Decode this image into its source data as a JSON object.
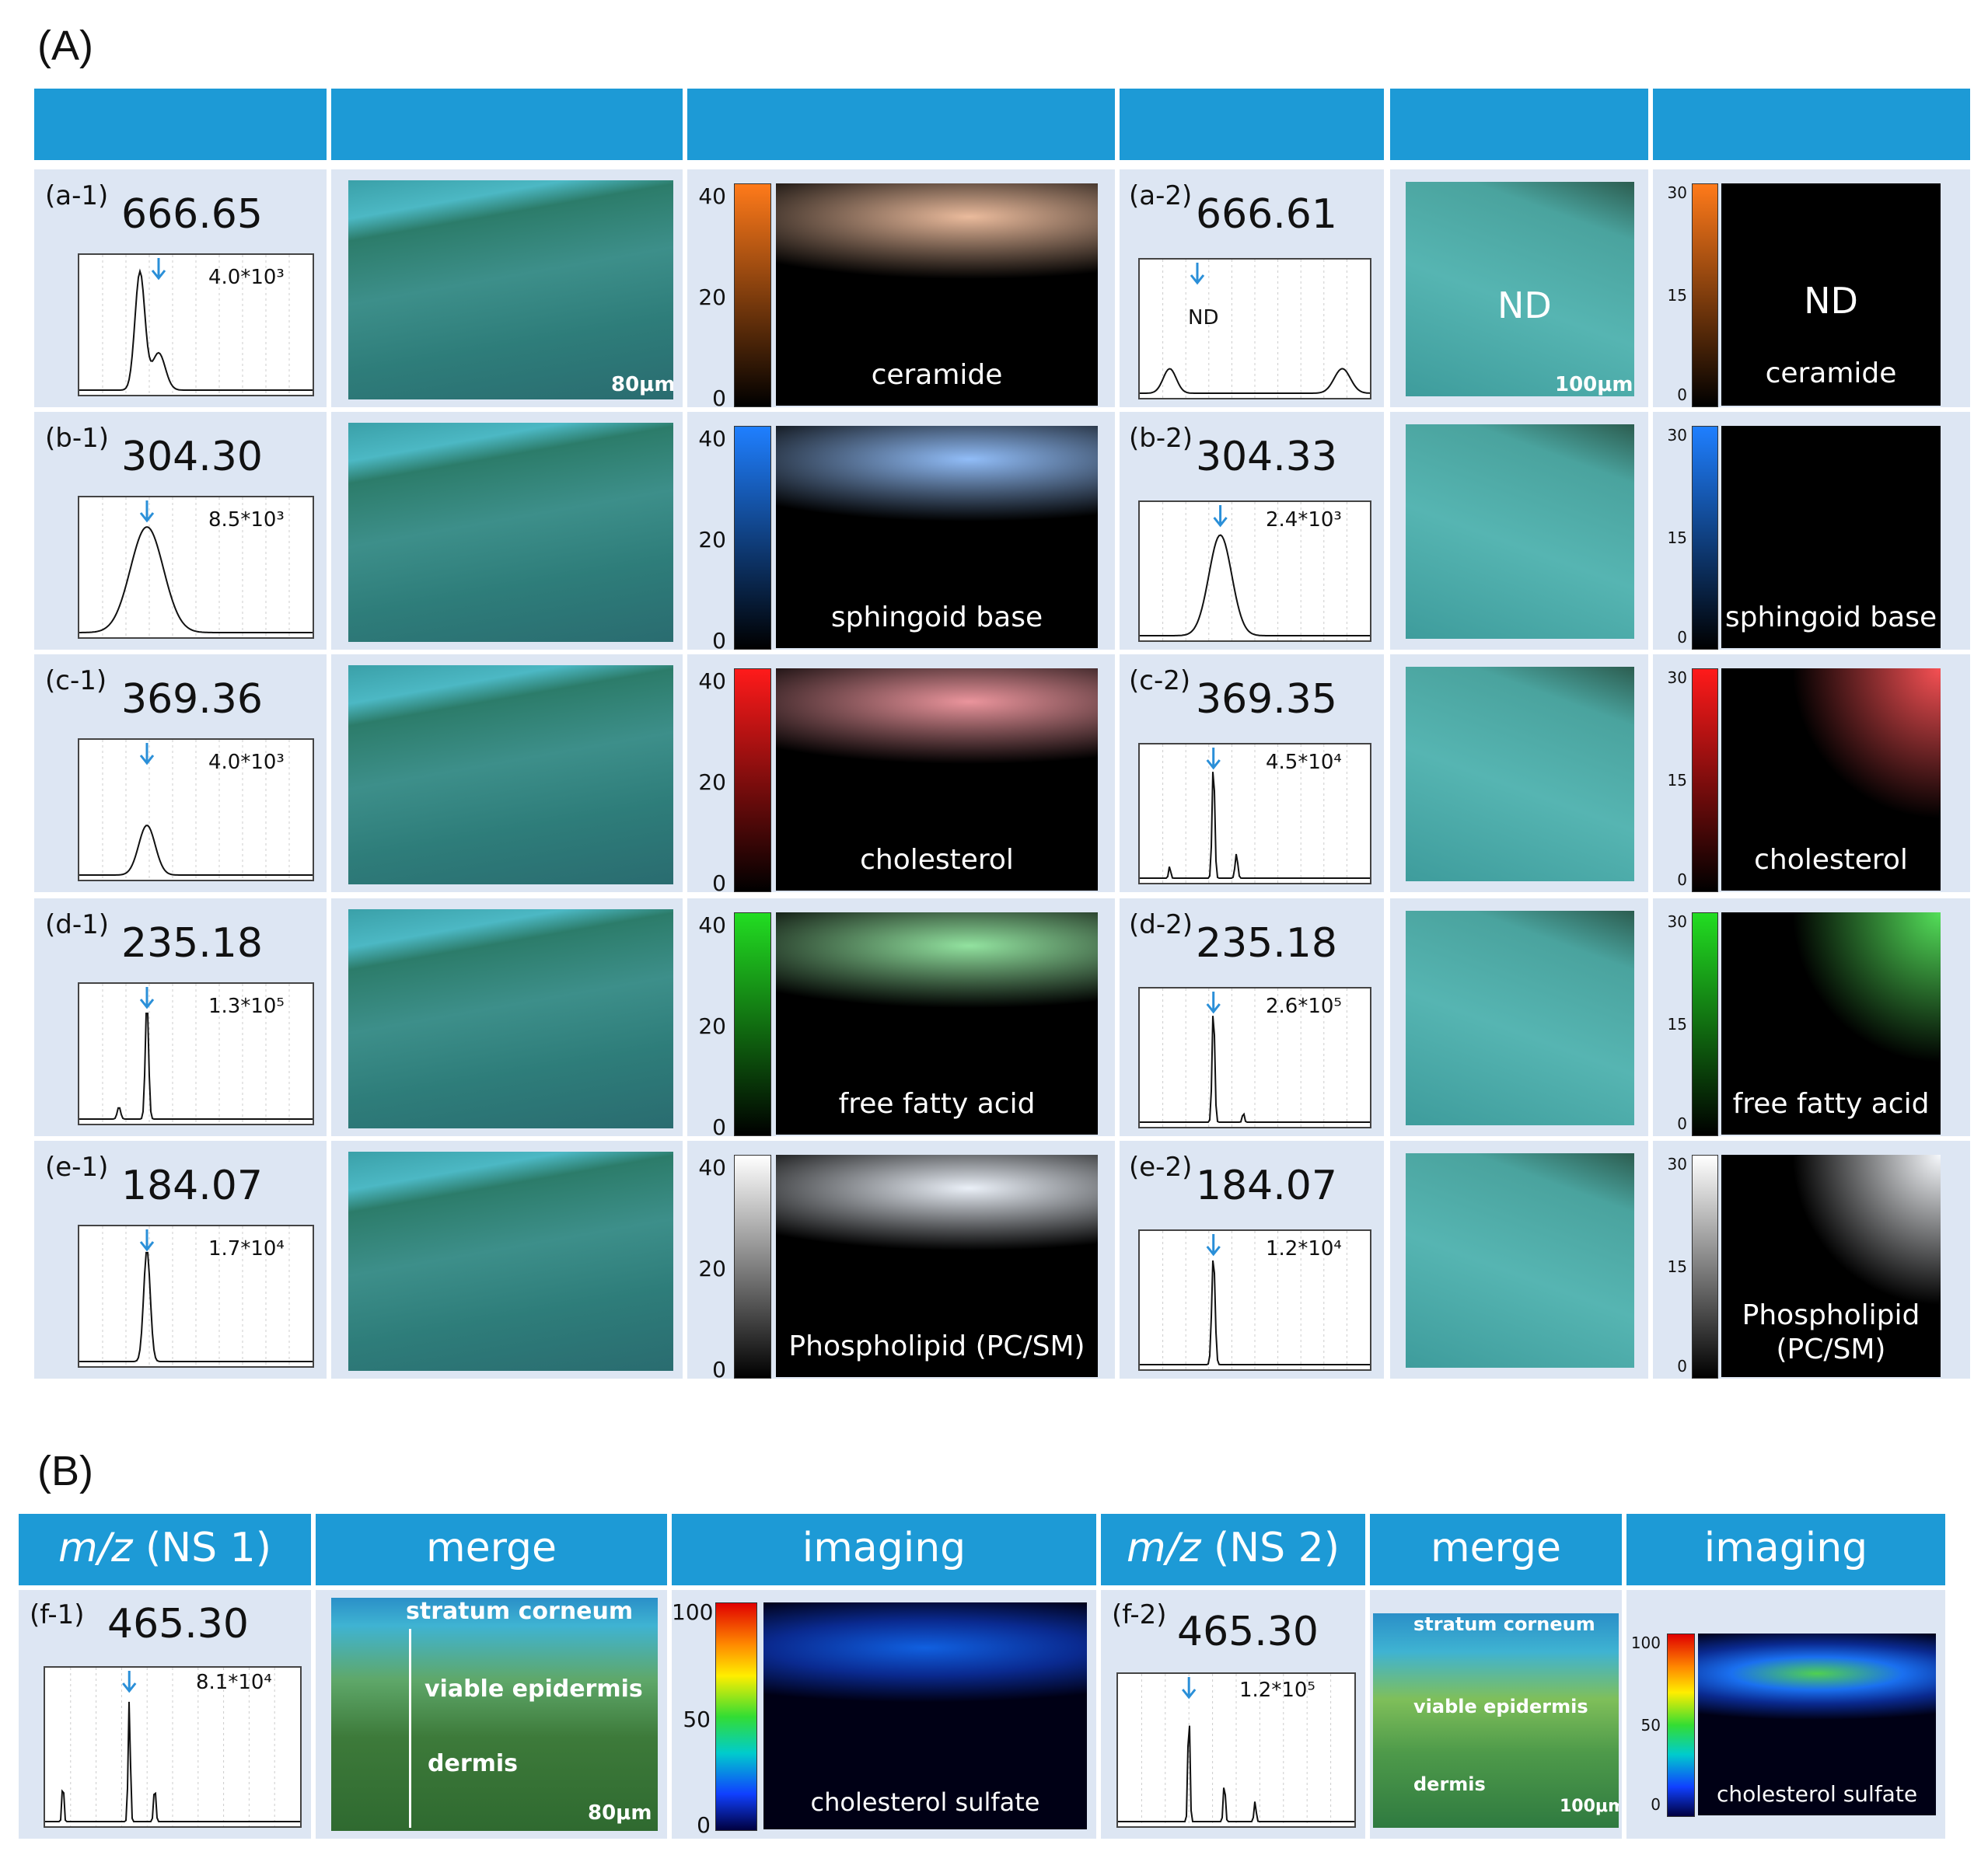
{
  "panel_A_label": "(A)",
  "panel_B_label": "(B)",
  "rows": [
    {
      "left_label": "(a-1)",
      "left_mz": "666.65",
      "left_intensity": "4.0*10³",
      "left_compound": "ceramide",
      "left_scale": "80μm",
      "right_label": "(a-2)",
      "right_mz": "666.61",
      "right_peak_label": "ND",
      "right_merge_label": "ND",
      "right_image_label": "ND",
      "right_compound": "ceramide",
      "right_scale": "100μm",
      "color": "#ff7a1a"
    },
    {
      "left_label": "(b-1)",
      "left_mz": "304.30",
      "left_intensity": "8.5*10³",
      "left_compound": "sphingoid base",
      "right_label": "(b-2)",
      "right_mz": "304.33",
      "right_intensity": "2.4*10³",
      "right_compound": "sphingoid base",
      "color": "#1f7fff"
    },
    {
      "left_label": "(c-1)",
      "left_mz": "369.36",
      "left_intensity": "4.0*10³",
      "left_compound": "cholesterol",
      "right_label": "(c-2)",
      "right_mz": "369.35",
      "right_intensity": "4.5*10⁴",
      "right_compound": "cholesterol",
      "color": "#ff1a1a"
    },
    {
      "left_label": "(d-1)",
      "left_mz": "235.18",
      "left_intensity": "1.3*10⁵",
      "left_compound": "free fatty acid",
      "right_label": "(d-2)",
      "right_mz": "235.18",
      "right_intensity": "2.6*10⁵",
      "right_compound": "free fatty acid",
      "color": "#22dd22"
    },
    {
      "left_label": "(e-1)",
      "left_mz": "184.07",
      "left_intensity": "1.7*10⁴",
      "left_compound": "Phospholipid (PC/SM)",
      "right_label": "(e-2)",
      "right_mz": "184.07",
      "right_intensity": "1.2*10⁴",
      "right_compound_line1": "Phospholipid",
      "right_compound_line2": "(PC/SM)",
      "color": "#ffffff"
    }
  ],
  "colorbar_ticks_left": [
    "40",
    "20",
    "0"
  ],
  "colorbar_ticks_right": [
    "30",
    "15",
    "0"
  ],
  "B": {
    "headers": {
      "mz_ns1_italic": "m/z",
      "mz_ns1_rest": " (NS 1)",
      "merge1": "merge",
      "imaging1": "imaging",
      "mz_ns2_italic": "m/z",
      "mz_ns2_rest": " (NS 2)",
      "merge2": "merge",
      "imaging2": "imaging"
    },
    "left_label": "(f-1)",
    "left_mz": "465.30",
    "left_intensity": "8.1*10⁴",
    "right_label": "(f-2)",
    "right_mz": "465.30",
    "right_intensity": "1.2*10⁵",
    "annotations_left": {
      "sc": "stratum corneum",
      "ve": "viable epidermis",
      "d": "dermis",
      "scale": "80μm"
    },
    "annotations_right": {
      "sc": "stratum corneum",
      "ve": "viable epidermis",
      "d": "dermis",
      "scale": "100μm"
    },
    "compound": "cholesterol sulfate",
    "colorbar_ticks": [
      "100",
      "50",
      "0"
    ]
  },
  "colors": {
    "header": "#1d9ad6",
    "cell": "#dde6f3"
  }
}
